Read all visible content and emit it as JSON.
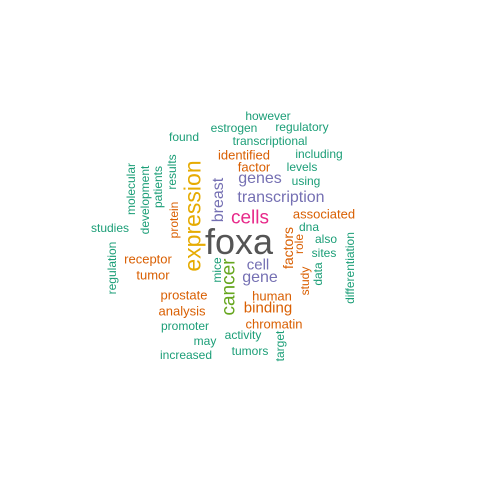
{
  "palette": {
    "gray": "#555555",
    "pink": "#e7298a",
    "purple": "#7570b3",
    "orange": "#e6ab02",
    "olive": "#66a61e",
    "rust": "#d95f02",
    "teal": "#1b9e77"
  },
  "words": [
    {
      "text": "foxa",
      "color": "#555555",
      "vertical": false
    },
    {
      "text": "expression",
      "color": "#e6ab02",
      "vertical": true
    },
    {
      "text": "cells",
      "color": "#e7298a",
      "vertical": false
    },
    {
      "text": "cancer",
      "color": "#66a61e",
      "vertical": true
    },
    {
      "text": "transcription",
      "color": "#7570b3",
      "vertical": false
    },
    {
      "text": "breast",
      "color": "#7570b3",
      "vertical": true
    },
    {
      "text": "genes",
      "color": "#7570b3",
      "vertical": false
    },
    {
      "text": "gene",
      "color": "#7570b3",
      "vertical": false
    },
    {
      "text": "cell",
      "color": "#7570b3",
      "vertical": false
    },
    {
      "text": "binding",
      "color": "#d95f02",
      "vertical": false
    },
    {
      "text": "factors",
      "color": "#d95f02",
      "vertical": true
    },
    {
      "text": "identified",
      "color": "#d95f02",
      "vertical": false
    },
    {
      "text": "factor",
      "color": "#d95f02",
      "vertical": false
    },
    {
      "text": "associated",
      "color": "#d95f02",
      "vertical": false
    },
    {
      "text": "prostate",
      "color": "#d95f02",
      "vertical": false
    },
    {
      "text": "analysis",
      "color": "#d95f02",
      "vertical": false
    },
    {
      "text": "chromatin",
      "color": "#d95f02",
      "vertical": false
    },
    {
      "text": "human",
      "color": "#d95f02",
      "vertical": false
    },
    {
      "text": "receptor",
      "color": "#d95f02",
      "vertical": false
    },
    {
      "text": "tumor",
      "color": "#d95f02",
      "vertical": false
    },
    {
      "text": "protein",
      "color": "#d95f02",
      "vertical": true
    },
    {
      "text": "role",
      "color": "#d95f02",
      "vertical": true
    },
    {
      "text": "study",
      "color": "#d95f02",
      "vertical": true
    },
    {
      "text": "however",
      "color": "#1b9e77",
      "vertical": false
    },
    {
      "text": "estrogen",
      "color": "#1b9e77",
      "vertical": false
    },
    {
      "text": "regulatory",
      "color": "#1b9e77",
      "vertical": false
    },
    {
      "text": "found",
      "color": "#1b9e77",
      "vertical": false
    },
    {
      "text": "transcriptional",
      "color": "#1b9e77",
      "vertical": false
    },
    {
      "text": "including",
      "color": "#1b9e77",
      "vertical": false
    },
    {
      "text": "levels",
      "color": "#1b9e77",
      "vertical": false
    },
    {
      "text": "using",
      "color": "#1b9e77",
      "vertical": false
    },
    {
      "text": "dna",
      "color": "#1b9e77",
      "vertical": false
    },
    {
      "text": "also",
      "color": "#1b9e77",
      "vertical": false
    },
    {
      "text": "sites",
      "color": "#1b9e77",
      "vertical": false
    },
    {
      "text": "data",
      "color": "#1b9e77",
      "vertical": true
    },
    {
      "text": "differentiation",
      "color": "#1b9e77",
      "vertical": true
    },
    {
      "text": "studies",
      "color": "#1b9e77",
      "vertical": false
    },
    {
      "text": "molecular",
      "color": "#1b9e77",
      "vertical": true
    },
    {
      "text": "development",
      "color": "#1b9e77",
      "vertical": true
    },
    {
      "text": "patients",
      "color": "#1b9e77",
      "vertical": true
    },
    {
      "text": "results",
      "color": "#1b9e77",
      "vertical": true
    },
    {
      "text": "regulation",
      "color": "#1b9e77",
      "vertical": true
    },
    {
      "text": "mice",
      "color": "#1b9e77",
      "vertical": true
    },
    {
      "text": "promoter",
      "color": "#1b9e77",
      "vertical": false
    },
    {
      "text": "activity",
      "color": "#1b9e77",
      "vertical": false
    },
    {
      "text": "may",
      "color": "#1b9e77",
      "vertical": false
    },
    {
      "text": "tumors",
      "color": "#1b9e77",
      "vertical": false
    },
    {
      "text": "target",
      "color": "#1b9e77",
      "vertical": true
    },
    {
      "text": "increased",
      "color": "#1b9e77",
      "vertical": false
    }
  ]
}
